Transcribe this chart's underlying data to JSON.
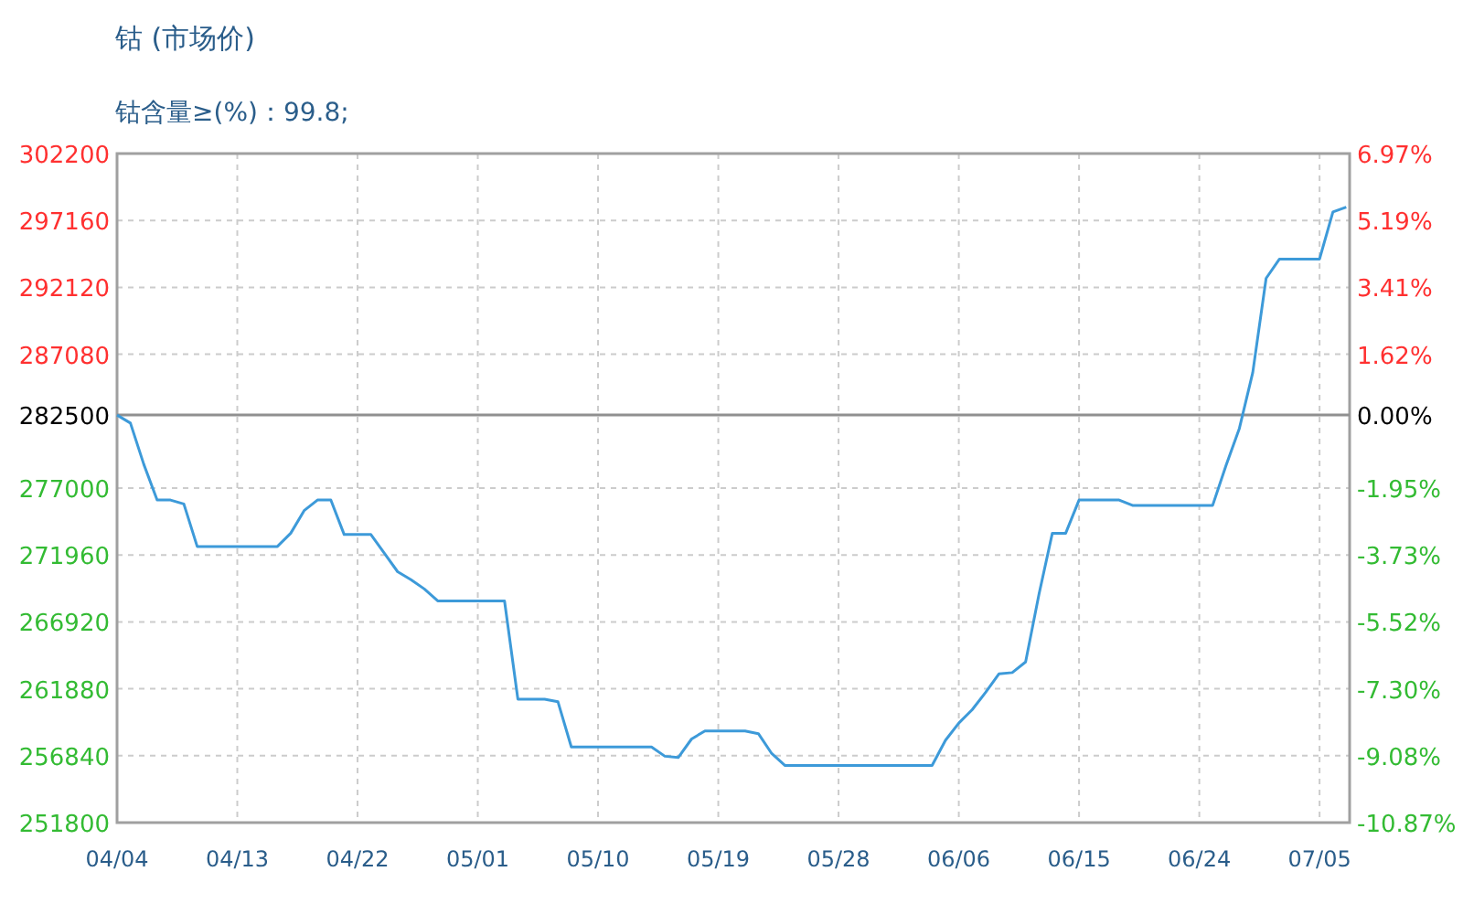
{
  "chart_data": {
    "type": "line",
    "title": "钴 (市场价)",
    "subtitle": "钴含量≥(%)：99.8;",
    "categories": [
      "04/04",
      null,
      null,
      null,
      null,
      null,
      null,
      null,
      null,
      "04/13",
      null,
      null,
      null,
      null,
      null,
      null,
      null,
      null,
      "04/22",
      null,
      null,
      null,
      null,
      null,
      null,
      null,
      null,
      "05/01",
      null,
      null,
      null,
      null,
      null,
      null,
      null,
      null,
      "05/10",
      null,
      null,
      null,
      null,
      null,
      null,
      null,
      null,
      "05/19",
      null,
      null,
      null,
      null,
      null,
      null,
      null,
      null,
      "05/28",
      null,
      null,
      null,
      null,
      null,
      null,
      null,
      null,
      "06/06",
      null,
      null,
      null,
      null,
      null,
      null,
      null,
      null,
      "06/15",
      null,
      null,
      null,
      null,
      null,
      null,
      null,
      null,
      "06/24",
      null,
      null,
      null,
      null,
      null,
      null,
      null,
      null,
      "07/05",
      null,
      null
    ],
    "series": [
      {
        "color": "#3d9ad9",
        "values": [
          282500,
          281900,
          278800,
          276100,
          276100,
          275800,
          272600,
          272600,
          272600,
          272600,
          272600,
          272600,
          272600,
          273600,
          275300,
          276100,
          276100,
          273500,
          273500,
          273500,
          272100,
          270700,
          270100,
          269400,
          268500,
          268500,
          268500,
          268500,
          268500,
          268500,
          261100,
          261100,
          261100,
          260900,
          257500,
          257500,
          257500,
          257500,
          257500,
          257500,
          257500,
          256800,
          256700,
          258100,
          258700,
          258700,
          258700,
          258700,
          258500,
          257000,
          256100,
          256100,
          256100,
          256100,
          256100,
          256100,
          256100,
          256100,
          256100,
          256100,
          256100,
          256100,
          258000,
          259300,
          260300,
          261600,
          263000,
          263100,
          263900,
          269000,
          273600,
          273600,
          276100,
          276100,
          276100,
          276100,
          275700,
          275700,
          275700,
          275700,
          275700,
          275700,
          275700,
          278700,
          281500,
          285700,
          292800,
          294250,
          294250,
          294250,
          294250,
          297800,
          298170
        ]
      }
    ],
    "ylim": [
      251800,
      302200
    ],
    "yticks": [
      302200,
      297160,
      292120,
      287080,
      282500,
      277000,
      271960,
      266920,
      261880,
      256840,
      251800
    ],
    "y2lim": [
      -10.87,
      6.97
    ],
    "y2ticks": [
      {
        "value": 6.97,
        "label": "6.97%"
      },
      {
        "value": 5.19,
        "label": "5.19%"
      },
      {
        "value": 3.41,
        "label": "3.41%"
      },
      {
        "value": 1.62,
        "label": "1.62%"
      },
      {
        "value": 0,
        "label": "0.00%"
      },
      {
        "value": -1.95,
        "label": "-1.95%"
      },
      {
        "value": -3.73,
        "label": "-3.73%"
      },
      {
        "value": -5.52,
        "label": "-5.52%"
      },
      {
        "value": -7.3,
        "label": "-7.30%"
      },
      {
        "value": -9.08,
        "label": "-9.08%"
      },
      {
        "value": -10.87,
        "label": "-10.87%"
      }
    ],
    "ref_lines": [
      {
        "axis": "y",
        "value": 282500,
        "color": "#909090"
      }
    ],
    "grid": true,
    "marker": "none",
    "line_style": "solid"
  }
}
